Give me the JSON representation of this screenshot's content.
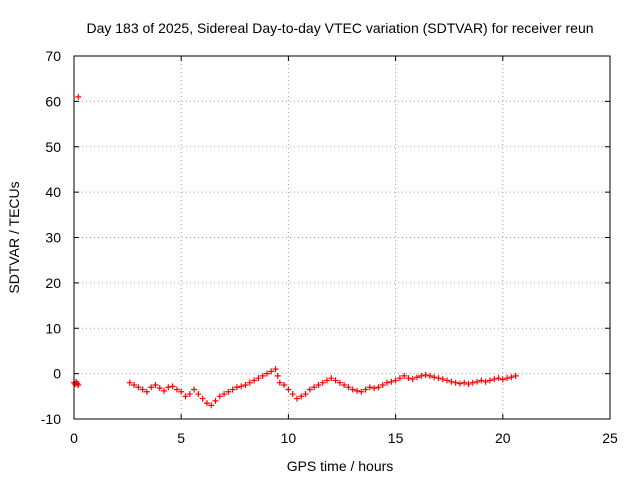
{
  "chart_data": {
    "type": "scatter",
    "title": "Day 183 of 2025, Sidereal Day-to-day VTEC variation (SDTVAR) for receiver reun",
    "xlabel": "GPS time / hours",
    "ylabel": "SDTVAR / TECUs",
    "xlim": [
      0,
      25
    ],
    "ylim": [
      -10,
      70
    ],
    "xticks": [
      "0",
      "5",
      "10",
      "15",
      "20",
      "25"
    ],
    "yticks": [
      "-10",
      "0",
      "10",
      "20",
      "30",
      "40",
      "50",
      "60",
      "70"
    ],
    "grid": true,
    "marker": "+",
    "color": "#ff0000",
    "series": [
      {
        "name": "SDTVAR",
        "points": [
          [
            0.0,
            -2.0
          ],
          [
            0.05,
            -2.3
          ],
          [
            0.1,
            -1.8
          ],
          [
            0.15,
            -2.2
          ],
          [
            0.2,
            -2.5
          ],
          [
            0.2,
            61.0
          ],
          [
            2.6,
            -2.0
          ],
          [
            2.8,
            -2.5
          ],
          [
            3.0,
            -3.0
          ],
          [
            3.2,
            -3.5
          ],
          [
            3.4,
            -4.0
          ],
          [
            3.6,
            -3.0
          ],
          [
            3.8,
            -2.5
          ],
          [
            4.0,
            -3.2
          ],
          [
            4.2,
            -3.8
          ],
          [
            4.4,
            -3.0
          ],
          [
            4.6,
            -2.8
          ],
          [
            4.8,
            -3.5
          ],
          [
            5.0,
            -4.0
          ],
          [
            5.2,
            -5.0
          ],
          [
            5.4,
            -4.5
          ],
          [
            5.6,
            -3.5
          ],
          [
            5.8,
            -4.5
          ],
          [
            6.0,
            -5.5
          ],
          [
            6.2,
            -6.5
          ],
          [
            6.4,
            -7.0
          ],
          [
            6.6,
            -6.0
          ],
          [
            6.8,
            -5.0
          ],
          [
            7.0,
            -4.5
          ],
          [
            7.2,
            -4.0
          ],
          [
            7.4,
            -3.5
          ],
          [
            7.6,
            -3.0
          ],
          [
            7.8,
            -2.8
          ],
          [
            8.0,
            -2.5
          ],
          [
            8.2,
            -2.0
          ],
          [
            8.4,
            -1.5
          ],
          [
            8.6,
            -1.0
          ],
          [
            8.8,
            -0.5
          ],
          [
            9.0,
            0.0
          ],
          [
            9.2,
            0.5
          ],
          [
            9.4,
            1.0
          ],
          [
            9.5,
            -0.5
          ],
          [
            9.6,
            -2.0
          ],
          [
            9.8,
            -2.5
          ],
          [
            10.0,
            -3.5
          ],
          [
            10.2,
            -4.5
          ],
          [
            10.4,
            -5.5
          ],
          [
            10.6,
            -5.0
          ],
          [
            10.8,
            -4.5
          ],
          [
            11.0,
            -3.5
          ],
          [
            11.2,
            -3.0
          ],
          [
            11.4,
            -2.5
          ],
          [
            11.6,
            -2.0
          ],
          [
            11.8,
            -1.5
          ],
          [
            12.0,
            -1.0
          ],
          [
            12.2,
            -1.5
          ],
          [
            12.4,
            -2.0
          ],
          [
            12.6,
            -2.5
          ],
          [
            12.8,
            -3.0
          ],
          [
            13.0,
            -3.5
          ],
          [
            13.2,
            -3.8
          ],
          [
            13.4,
            -4.0
          ],
          [
            13.6,
            -3.5
          ],
          [
            13.8,
            -3.0
          ],
          [
            14.0,
            -3.2
          ],
          [
            14.2,
            -3.0
          ],
          [
            14.4,
            -2.5
          ],
          [
            14.6,
            -2.0
          ],
          [
            14.8,
            -1.8
          ],
          [
            15.0,
            -1.5
          ],
          [
            15.2,
            -1.0
          ],
          [
            15.4,
            -0.5
          ],
          [
            15.6,
            -1.0
          ],
          [
            15.8,
            -1.2
          ],
          [
            16.0,
            -0.8
          ],
          [
            16.2,
            -0.5
          ],
          [
            16.4,
            -0.3
          ],
          [
            16.6,
            -0.5
          ],
          [
            16.8,
            -0.8
          ],
          [
            17.0,
            -1.0
          ],
          [
            17.2,
            -1.2
          ],
          [
            17.4,
            -1.5
          ],
          [
            17.6,
            -1.8
          ],
          [
            17.8,
            -2.0
          ],
          [
            18.0,
            -2.2
          ],
          [
            18.2,
            -2.0
          ],
          [
            18.4,
            -2.3
          ],
          [
            18.6,
            -2.0
          ],
          [
            18.8,
            -1.8
          ],
          [
            19.0,
            -1.5
          ],
          [
            19.2,
            -1.8
          ],
          [
            19.4,
            -1.5
          ],
          [
            19.6,
            -1.2
          ],
          [
            19.8,
            -1.0
          ],
          [
            20.0,
            -1.3
          ],
          [
            20.2,
            -1.0
          ],
          [
            20.4,
            -0.8
          ],
          [
            20.6,
            -0.5
          ]
        ]
      }
    ]
  }
}
